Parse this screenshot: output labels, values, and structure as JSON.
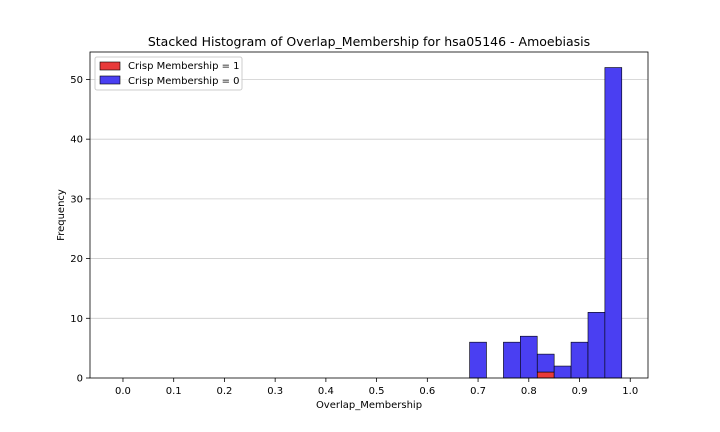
{
  "chart_data": {
    "type": "bar",
    "stacked": true,
    "title": "Stacked Histogram of Overlap_Membership for hsa05146 - Amoebiasis",
    "xlabel": "Overlap_Membership",
    "ylabel": "Frequency",
    "xlim": [
      -0.065,
      1.035
    ],
    "ylim": [
      0,
      54.6
    ],
    "x_ticks": [
      "0.0",
      "0.1",
      "0.2",
      "0.3",
      "0.4",
      "0.5",
      "0.6",
      "0.7",
      "0.8",
      "0.9",
      "1.0"
    ],
    "y_ticks": [
      "0",
      "10",
      "20",
      "30",
      "40",
      "50"
    ],
    "grid": "horizontal",
    "legend_position": "top-left",
    "bin_width": 0.0333,
    "series": [
      {
        "name": "Crisp Membership = 1",
        "color": "#e83a3a",
        "bins": [
          {
            "x_start": 0.8167,
            "count": 1
          }
        ]
      },
      {
        "name": "Crisp Membership = 0",
        "color": "#4a3ff2",
        "bins": [
          {
            "x_start": 0.6833,
            "count": 6
          },
          {
            "x_start": 0.75,
            "count": 6
          },
          {
            "x_start": 0.7833,
            "count": 7
          },
          {
            "x_start": 0.8167,
            "count": 3
          },
          {
            "x_start": 0.85,
            "count": 2
          },
          {
            "x_start": 0.8833,
            "count": 6
          },
          {
            "x_start": 0.9167,
            "count": 11
          },
          {
            "x_start": 0.95,
            "count": 52
          }
        ]
      }
    ]
  }
}
